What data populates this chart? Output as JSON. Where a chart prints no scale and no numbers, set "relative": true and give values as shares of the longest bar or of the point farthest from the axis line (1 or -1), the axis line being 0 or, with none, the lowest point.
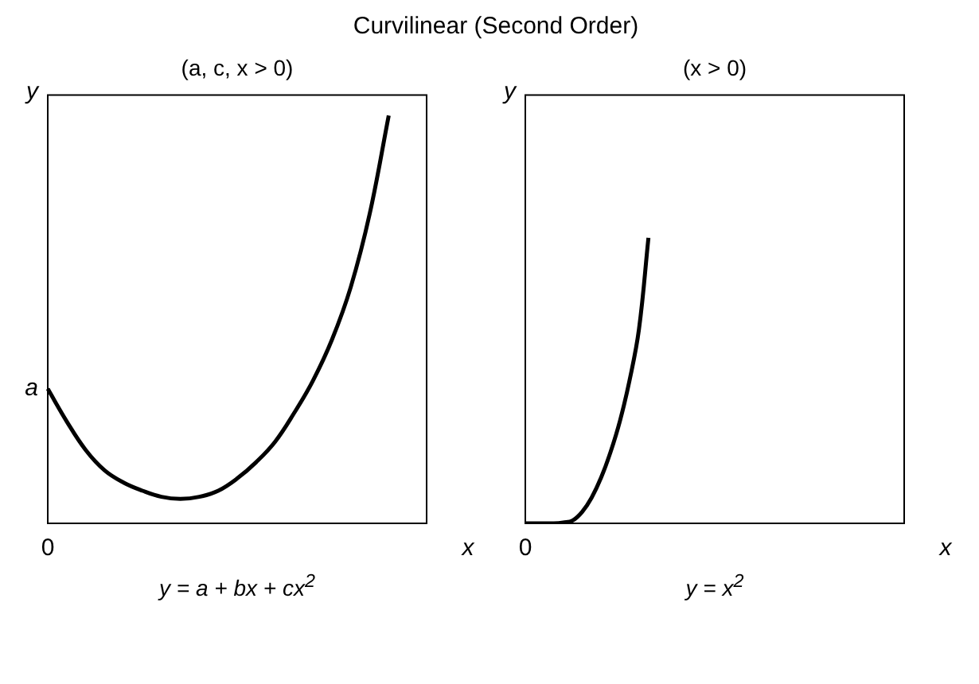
{
  "chart_data": [
    {
      "type": "line",
      "title": "Curvilinear (Second Order)",
      "subtitle": "(a, c, x > 0)",
      "xlabel": "x",
      "ylabel": "y",
      "relative": true,
      "color": "#000000",
      "categories": [
        null,
        null,
        null,
        null,
        null,
        null,
        null,
        null,
        null,
        null,
        null,
        null,
        null,
        null,
        null,
        null,
        null,
        null,
        null,
        null,
        null
      ],
      "values": [
        0.33,
        0.25,
        0.18,
        0.13,
        0.1,
        0.08,
        0.065,
        0.06,
        0.065,
        0.08,
        0.11,
        0.15,
        0.2,
        0.27,
        0.35,
        0.45,
        0.58,
        0.76,
        1.0,
        null,
        null
      ],
      "annotations": [
        "a",
        "0",
        "y = a + bx + cx$^{2}$"
      ]
    },
    {
      "type": "line",
      "subtitle": "(x > 0)",
      "xlabel": "x",
      "ylabel": "y",
      "relative": true,
      "color": "#000000",
      "categories": [
        null,
        null,
        null,
        null,
        null,
        null,
        null,
        null,
        null,
        null,
        null,
        null,
        null,
        null,
        null,
        null,
        null,
        null,
        null,
        null,
        null,
        null,
        null,
        null,
        null,
        null,
        null,
        null,
        null,
        null,
        null,
        null,
        null,
        null,
        null,
        null,
        null,
        null,
        null,
        null,
        null
      ],
      "values": [
        0,
        0,
        0,
        0,
        0.003,
        0.01,
        0.04,
        0.09,
        0.16,
        0.25,
        0.36,
        0.5,
        0.68,
        1.0,
        null,
        null,
        null,
        null,
        null,
        null,
        null,
        null,
        null,
        null,
        null,
        null,
        null,
        null,
        null,
        null,
        null,
        null,
        null,
        null,
        null,
        null,
        null,
        null,
        null,
        null,
        null
      ],
      "annotations": [
        "0",
        "y = x$^{2}$"
      ]
    }
  ]
}
